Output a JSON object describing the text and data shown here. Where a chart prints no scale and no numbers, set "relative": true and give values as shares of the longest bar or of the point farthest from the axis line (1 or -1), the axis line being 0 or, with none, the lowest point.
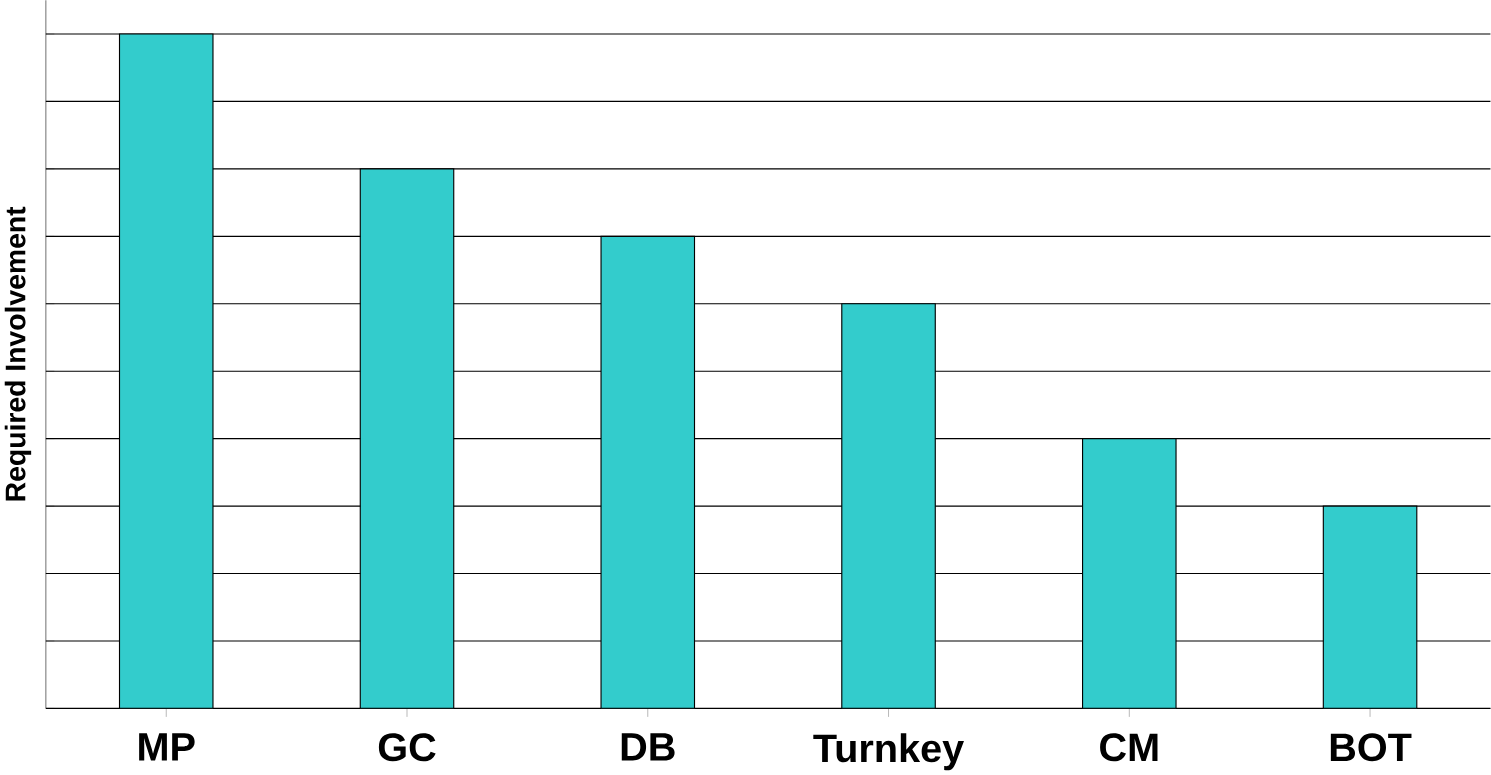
{
  "chart_data": {
    "type": "bar",
    "relative": true,
    "ylabel": "Required Involvement",
    "categories": [
      "MP",
      "GC",
      "DB",
      "Turnkey",
      "CM",
      "BOT"
    ],
    "values": [
      1,
      0.8,
      0.7,
      0.6,
      0.4,
      0.3
    ],
    "color": "#33cccc",
    "grid": "y"
  }
}
